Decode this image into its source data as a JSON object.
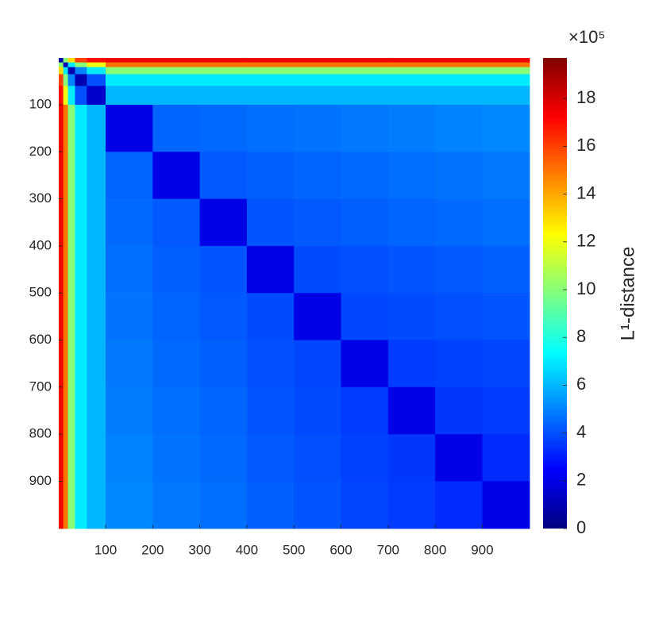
{
  "chart_data": {
    "type": "heatmap",
    "colormap": "jet",
    "xlim": [
      0.5,
      1000.5
    ],
    "ylim": [
      0.5,
      1000.5
    ],
    "y_reversed": true,
    "xticks": [
      100,
      200,
      300,
      400,
      500,
      600,
      700,
      800,
      900
    ],
    "yticks": [
      100,
      200,
      300,
      400,
      500,
      600,
      700,
      800,
      900
    ],
    "x_edges": [
      0.5,
      10,
      20,
      35,
      60,
      100,
      200,
      300,
      400,
      500,
      600,
      700,
      800,
      900,
      1000.5
    ],
    "y_edges": [
      0.5,
      10,
      20,
      35,
      60,
      100,
      200,
      300,
      400,
      500,
      600,
      700,
      800,
      900,
      1000.5
    ],
    "z": [
      [
        1,
        10,
        13,
        16,
        17,
        17.5,
        17.5,
        17.5,
        17.5,
        17.5,
        17.5,
        17.5,
        17.5,
        17.5
      ],
      [
        10,
        1,
        7,
        10,
        12,
        15,
        15,
        15,
        15,
        15,
        15,
        15,
        15,
        15
      ],
      [
        13,
        7,
        1,
        5,
        7,
        10,
        10,
        10,
        10,
        10,
        10,
        10,
        10,
        10
      ],
      [
        16,
        10,
        5,
        1,
        4,
        7,
        7,
        7,
        7,
        7,
        7,
        7,
        7,
        7
      ],
      [
        17,
        12,
        7,
        4,
        1.5,
        6,
        6,
        6,
        6,
        6,
        6,
        6,
        6,
        6
      ],
      [
        17.5,
        15,
        10,
        7,
        6,
        2,
        4.4,
        4.5,
        4.6,
        4.7,
        4.8,
        4.9,
        5.0,
        5.1
      ],
      [
        17.5,
        15,
        10,
        7,
        6,
        4.4,
        2,
        4.2,
        4.3,
        4.4,
        4.5,
        4.6,
        4.7,
        4.8
      ],
      [
        17.5,
        15,
        10,
        7,
        6,
        4.5,
        4.2,
        2,
        4.1,
        4.2,
        4.3,
        4.4,
        4.5,
        4.6
      ],
      [
        17.5,
        15,
        10,
        7,
        6,
        4.6,
        4.3,
        4.1,
        2,
        3.9,
        4.0,
        4.1,
        4.2,
        4.3
      ],
      [
        17.5,
        15,
        10,
        7,
        6,
        4.7,
        4.4,
        4.2,
        3.9,
        2,
        3.8,
        3.9,
        4.0,
        4.1
      ],
      [
        17.5,
        15,
        10,
        7,
        6,
        4.8,
        4.5,
        4.3,
        4.0,
        3.8,
        2,
        3.6,
        3.7,
        3.8
      ],
      [
        17.5,
        15,
        10,
        7,
        6,
        4.9,
        4.6,
        4.4,
        4.1,
        3.9,
        3.6,
        2,
        3.5,
        3.6
      ],
      [
        17.5,
        15,
        10,
        7,
        6,
        5.0,
        4.7,
        4.5,
        4.2,
        4.0,
        3.7,
        3.5,
        2,
        3.3
      ],
      [
        17.5,
        15,
        10,
        7,
        6,
        5.1,
        4.8,
        4.6,
        4.3,
        4.1,
        3.8,
        3.6,
        3.3,
        2
      ]
    ],
    "clim": [
      0,
      19.7
    ],
    "colorbar_ticks": [
      0,
      2,
      4,
      6,
      8,
      10,
      12,
      14,
      16,
      18
    ],
    "colorbar_scale": "×10⁵",
    "colorbar_label": "L¹-distance"
  }
}
